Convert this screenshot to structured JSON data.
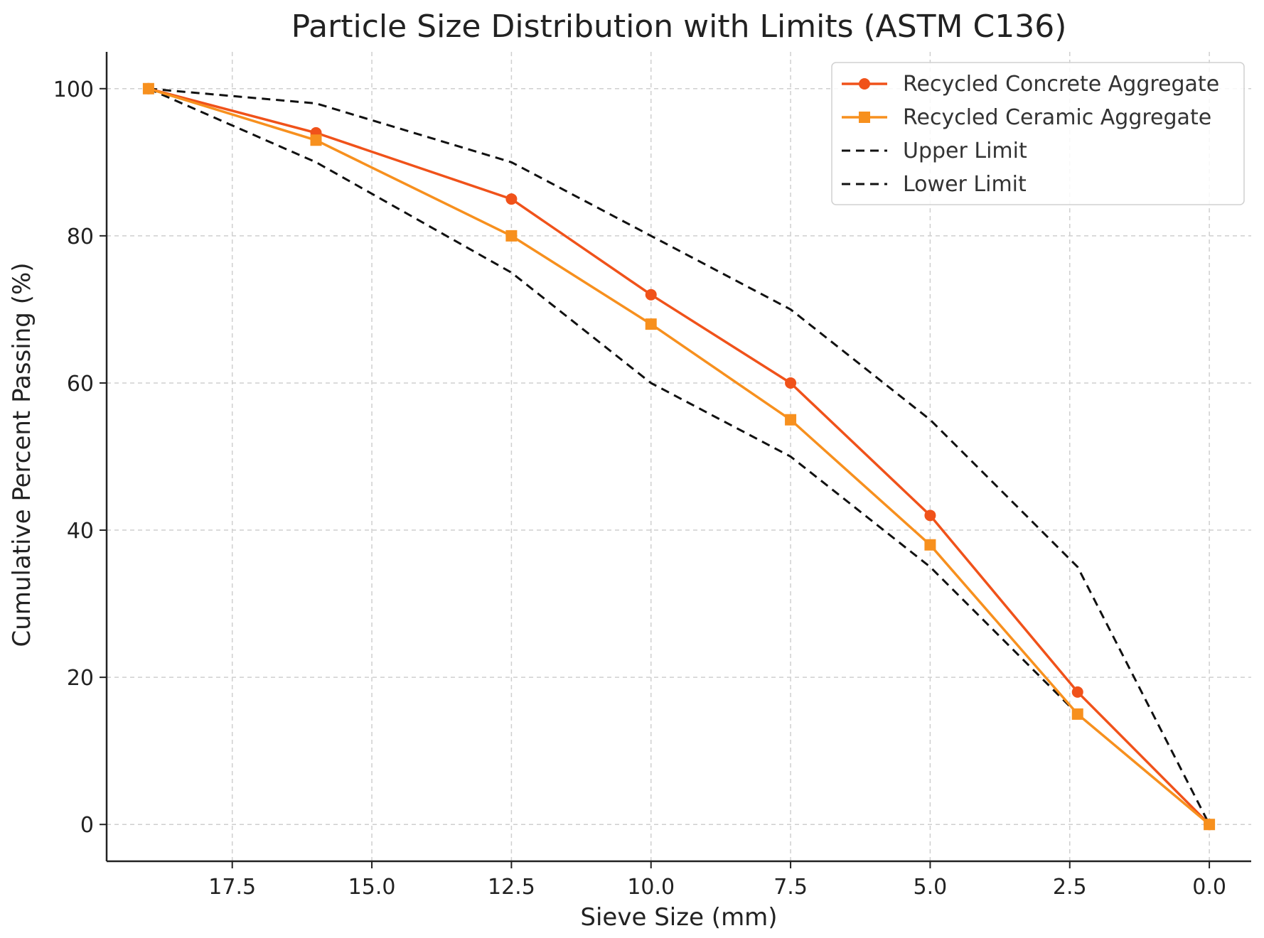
{
  "chart_data": {
    "type": "line",
    "title": "Particle Size Distribution with Limits (ASTM C136)",
    "xlabel": "Sieve Size (mm)",
    "ylabel": "Cumulative Percent Passing (%)",
    "x_inverted": true,
    "xlim": [
      19.75,
      -0.75
    ],
    "ylim": [
      -5,
      105
    ],
    "x_ticks": [
      17.5,
      15.0,
      12.5,
      10.0,
      7.5,
      5.0,
      2.5,
      0.0
    ],
    "x_tick_labels": [
      "17.5",
      "15.0",
      "12.5",
      "10.0",
      "7.5",
      "5.0",
      "2.5",
      "0.0"
    ],
    "y_ticks": [
      0,
      20,
      40,
      60,
      80,
      100
    ],
    "y_tick_labels": [
      "0",
      "20",
      "40",
      "60",
      "80",
      "100"
    ],
    "grid": true,
    "legend_position": "top-right",
    "x": [
      19.0,
      16.0,
      12.5,
      10.0,
      7.5,
      5.0,
      2.36,
      0.0
    ],
    "series": [
      {
        "name": "Recycled Concrete Aggregate",
        "color": "#f0521a",
        "marker": "circle",
        "dashed": false,
        "values": [
          100,
          94,
          85,
          72,
          60,
          42,
          18,
          0
        ]
      },
      {
        "name": "Recycled Ceramic Aggregate",
        "color": "#f7901e",
        "marker": "square",
        "dashed": false,
        "values": [
          100,
          93,
          80,
          68,
          55,
          38,
          15,
          0
        ]
      },
      {
        "name": "Upper Limit",
        "color": "#111111",
        "marker": "none",
        "dashed": true,
        "values": [
          100,
          98,
          90,
          80,
          70,
          55,
          35,
          0
        ]
      },
      {
        "name": "Lower Limit",
        "color": "#111111",
        "marker": "none",
        "dashed": true,
        "values": [
          100,
          90,
          75,
          60,
          50,
          35,
          15,
          0
        ]
      }
    ]
  }
}
